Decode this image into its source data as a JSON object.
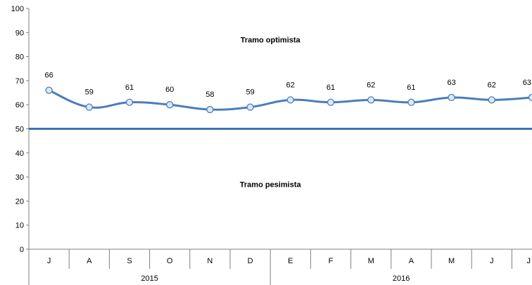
{
  "chart_data": {
    "type": "line",
    "categories": [
      "J",
      "A",
      "S",
      "O",
      "N",
      "D",
      "E",
      "F",
      "M",
      "A",
      "M",
      "J",
      "J"
    ],
    "groups": [
      {
        "label": "2015",
        "start": 0,
        "end": 5
      },
      {
        "label": "2016",
        "start": 6,
        "end": 12
      }
    ],
    "series": [
      {
        "values": [
          66,
          59,
          61,
          60,
          58,
          59,
          62,
          61,
          62,
          61,
          63,
          62,
          63
        ]
      }
    ],
    "ylim": [
      0,
      100
    ],
    "yticks": [
      0,
      10,
      20,
      30,
      40,
      50,
      60,
      70,
      80,
      90,
      100
    ],
    "reference_line": 50,
    "annotations": [
      {
        "text": "Tramo optimista",
        "y": 87
      },
      {
        "text": "Tramo pesimista",
        "y": 27
      }
    ],
    "grid": false,
    "title": "",
    "xlabel": "",
    "ylabel": ""
  },
  "colors": {
    "line": "#4a7ebb",
    "reference": "#3e72b8",
    "marker_fill": "#dde8f6",
    "axis": "#808080"
  }
}
